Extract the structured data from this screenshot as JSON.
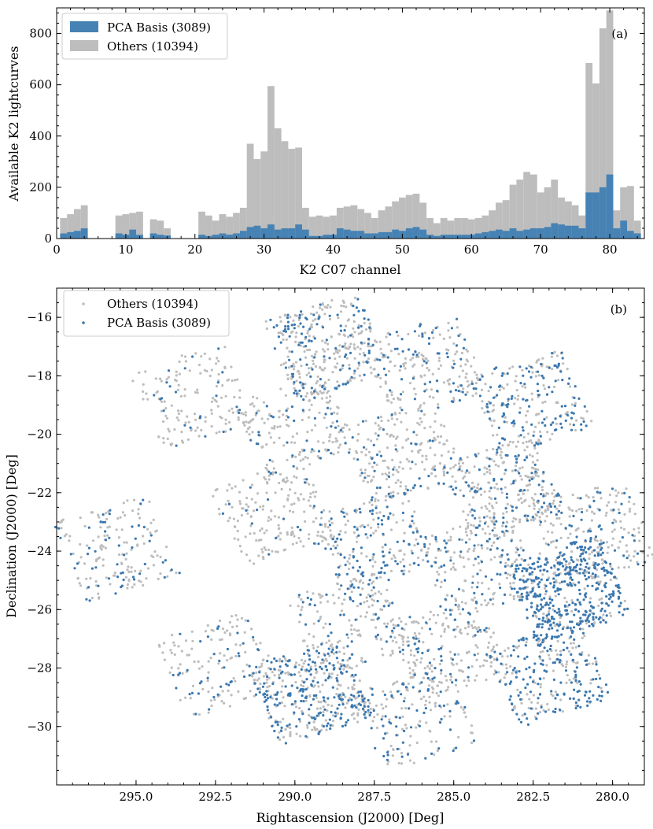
{
  "chart_data": [
    {
      "panel_label": "(a)",
      "type": "bar",
      "stacked": false,
      "xlabel": "K2 C07 channel",
      "ylabel": "Available K2 lightcurves",
      "xlim": [
        0,
        85
      ],
      "ylim": [
        0,
        900
      ],
      "xticks": [
        0,
        10,
        20,
        30,
        40,
        50,
        60,
        70,
        80
      ],
      "yticks": [
        0,
        200,
        400,
        600,
        800
      ],
      "legend_position": "top-left",
      "channels": [
        1,
        2,
        3,
        4,
        5,
        6,
        7,
        8,
        9,
        10,
        11,
        12,
        13,
        14,
        15,
        16,
        17,
        18,
        19,
        20,
        21,
        22,
        23,
        24,
        25,
        26,
        27,
        28,
        29,
        30,
        31,
        32,
        33,
        34,
        35,
        36,
        37,
        38,
        39,
        40,
        41,
        42,
        43,
        44,
        45,
        46,
        47,
        48,
        49,
        50,
        51,
        52,
        53,
        54,
        55,
        56,
        57,
        58,
        59,
        60,
        61,
        62,
        63,
        64,
        65,
        66,
        67,
        68,
        69,
        70,
        71,
        72,
        73,
        74,
        75,
        76,
        77,
        78,
        79,
        80,
        81,
        82,
        83,
        84
      ],
      "series": [
        {
          "name": "Others (10394)",
          "color": "#bdbdbd",
          "values": [
            80,
            95,
            115,
            130,
            0,
            0,
            0,
            0,
            90,
            95,
            100,
            105,
            0,
            75,
            70,
            40,
            0,
            0,
            0,
            0,
            105,
            90,
            70,
            95,
            85,
            100,
            120,
            370,
            310,
            340,
            595,
            430,
            380,
            350,
            355,
            120,
            85,
            90,
            85,
            90,
            120,
            125,
            130,
            115,
            100,
            80,
            110,
            125,
            145,
            160,
            170,
            175,
            140,
            80,
            60,
            80,
            70,
            80,
            80,
            75,
            80,
            90,
            110,
            140,
            150,
            210,
            230,
            260,
            250,
            180,
            200,
            230,
            160,
            145,
            130,
            90,
            685,
            605,
            820,
            890,
            110,
            200,
            205,
            70
          ]
        },
        {
          "name": "PCA Basis (3089)",
          "color": "#4682b4",
          "values": [
            20,
            25,
            30,
            40,
            0,
            0,
            0,
            0,
            20,
            15,
            35,
            15,
            0,
            20,
            15,
            12,
            0,
            0,
            0,
            0,
            15,
            10,
            15,
            20,
            15,
            20,
            30,
            45,
            50,
            40,
            55,
            35,
            40,
            40,
            55,
            35,
            10,
            10,
            15,
            15,
            40,
            35,
            30,
            30,
            20,
            20,
            25,
            25,
            35,
            30,
            40,
            45,
            35,
            15,
            10,
            15,
            15,
            15,
            15,
            15,
            20,
            25,
            30,
            35,
            30,
            40,
            30,
            35,
            40,
            40,
            45,
            60,
            55,
            50,
            50,
            40,
            180,
            180,
            200,
            250,
            40,
            70,
            30,
            20
          ]
        }
      ]
    },
    {
      "panel_label": "(b)",
      "type": "scatter",
      "xlabel": "Rightascension (J2000) [Deg]",
      "ylabel": "Declination (J2000) [Deg]",
      "xlim": [
        297.5,
        279.0
      ],
      "ylim": [
        -32.0,
        -15.0
      ],
      "xticks": [
        295.0,
        292.5,
        290.0,
        287.5,
        285.0,
        282.5,
        280.0
      ],
      "yticks": [
        -16,
        -18,
        -20,
        -22,
        -24,
        -26,
        -28,
        -30
      ],
      "legend_position": "top-left",
      "series": [
        {
          "name": "Others (10394)",
          "color": "#bdbdbd",
          "marker_size": 1.6
        },
        {
          "name": "PCA Basis (3089)",
          "color": "#3a78b0",
          "marker_size": 1.6
        }
      ],
      "modules": [
        {
          "center": [
            289.0,
            -17.0
          ],
          "density": 1.5,
          "pca": 0.35
        },
        {
          "center": [
            285.9,
            -17.7
          ],
          "density": 0.9,
          "pca": 0.3
        },
        {
          "center": [
            282.6,
            -18.9
          ],
          "density": 1.1,
          "pca": 0.45
        },
        {
          "center": [
            293.2,
            -18.7
          ],
          "density": 0.7,
          "pca": 0.12
        },
        {
          "center": [
            290.0,
            -19.8
          ],
          "density": 0.8,
          "pca": 0.25
        },
        {
          "center": [
            286.6,
            -20.6
          ],
          "density": 0.9,
          "pca": 0.22
        },
        {
          "center": [
            283.4,
            -21.9
          ],
          "density": 1.3,
          "pca": 0.35
        },
        {
          "center": [
            290.7,
            -22.7
          ],
          "density": 0.8,
          "pca": 0.12
        },
        {
          "center": [
            287.5,
            -23.6
          ],
          "density": 1.0,
          "pca": 0.5
        },
        {
          "center": [
            284.2,
            -24.5
          ],
          "density": 0.9,
          "pca": 0.35
        },
        {
          "center": [
            280.6,
            -23.4
          ],
          "density": 0.9,
          "pca": 0.25
        },
        {
          "center": [
            295.6,
            -23.9
          ],
          "density": 0.8,
          "pca": 0.35
        },
        {
          "center": [
            281.4,
            -25.3
          ],
          "density": 2.2,
          "pca": 0.75
        },
        {
          "center": [
            288.3,
            -26.5
          ],
          "density": 0.8,
          "pca": 0.3
        },
        {
          "center": [
            285.1,
            -27.3
          ],
          "density": 0.9,
          "pca": 0.25
        },
        {
          "center": [
            282.0,
            -28.2
          ],
          "density": 1.2,
          "pca": 0.6
        },
        {
          "center": [
            292.4,
            -27.9
          ],
          "density": 0.7,
          "pca": 0.2
        },
        {
          "center": [
            289.5,
            -28.8
          ],
          "density": 1.8,
          "pca": 0.45
        },
        {
          "center": [
            286.2,
            -29.7
          ],
          "density": 0.8,
          "pca": 0.4
        }
      ]
    }
  ]
}
